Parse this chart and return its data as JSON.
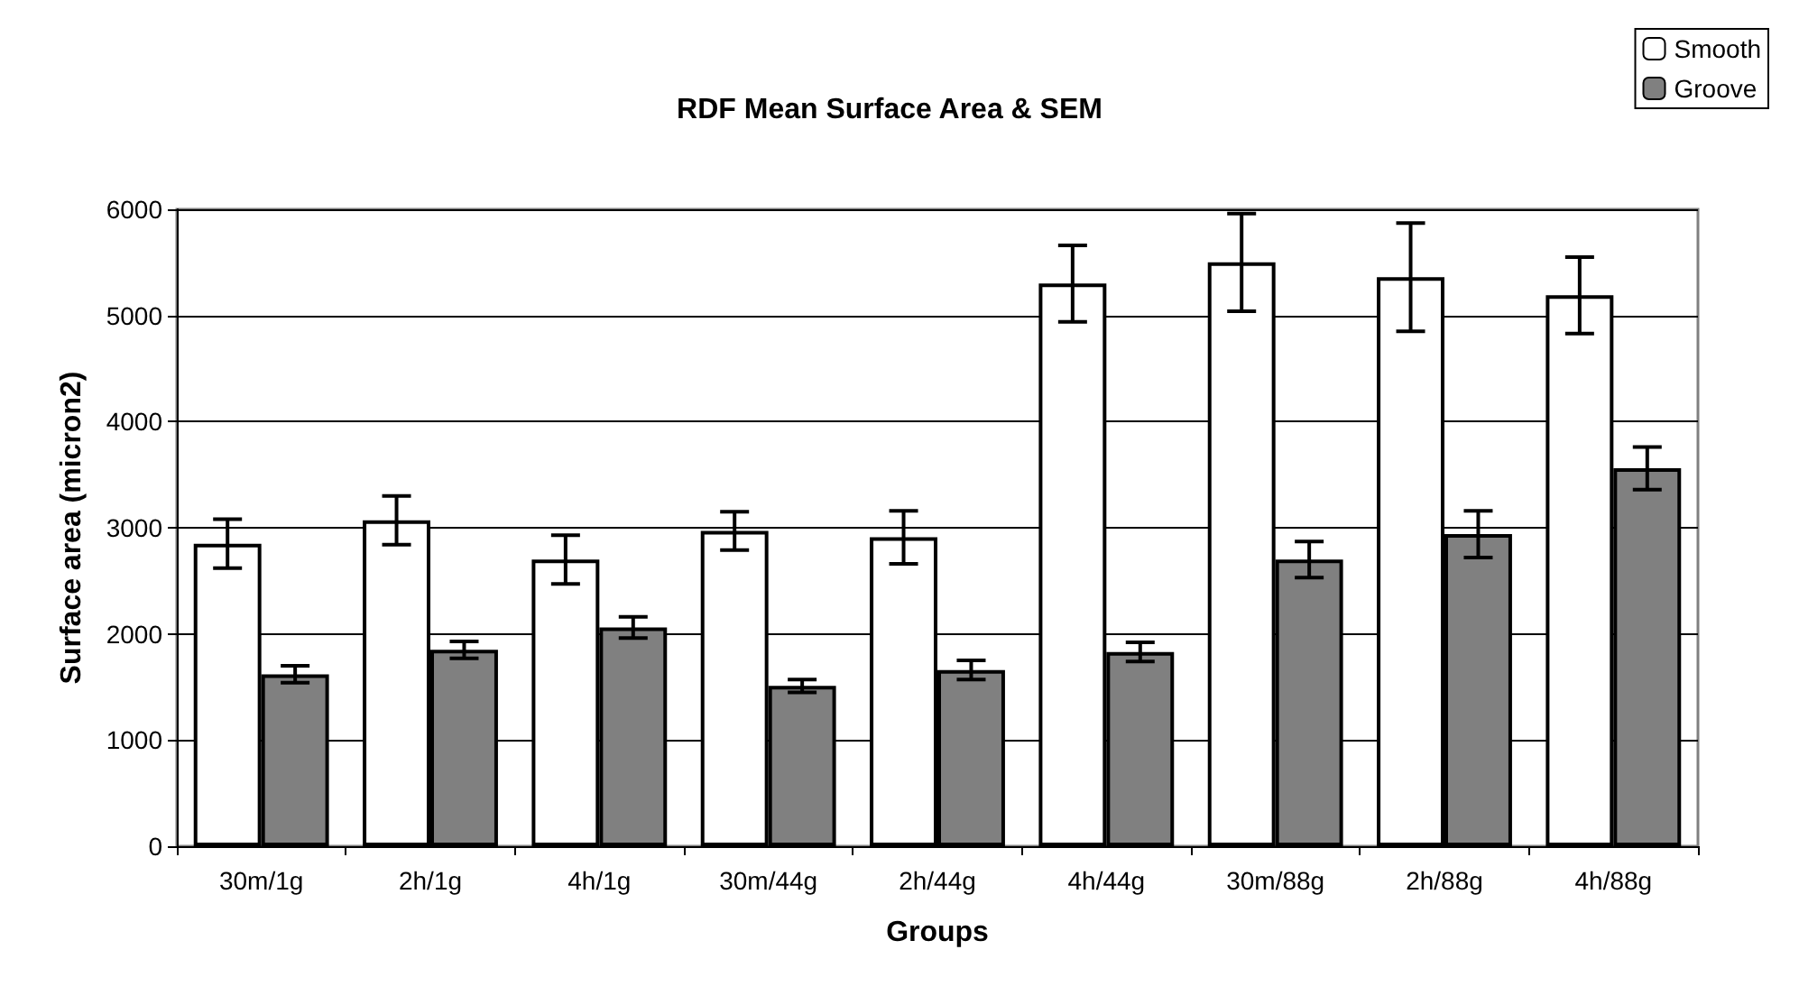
{
  "chart_data": {
    "type": "bar",
    "title": "RDF Mean Surface Area & SEM",
    "xlabel": "Groups",
    "ylabel": "Surface area (micron2)",
    "categories": [
      "30m/1g",
      "2h/1g",
      "4h/1g",
      "30m/44g",
      "2h/44g",
      "4h/44g",
      "30m/88g",
      "2h/88g",
      "4h/88g"
    ],
    "series": [
      {
        "name": "Smooth",
        "color": "#ffffff",
        "values": [
          2850,
          3070,
          2700,
          2970,
          2910,
          5300,
          5500,
          5360,
          5190
        ],
        "errors": [
          230,
          230,
          230,
          180,
          250,
          360,
          460,
          510,
          360
        ]
      },
      {
        "name": "Groove",
        "color": "#808080",
        "values": [
          1620,
          1850,
          2060,
          1510,
          1660,
          1830,
          2700,
          2940,
          3560
        ],
        "errors": [
          80,
          80,
          100,
          60,
          90,
          90,
          170,
          220,
          200
        ]
      }
    ],
    "ylim": [
      0,
      6000
    ],
    "yticks": [
      0,
      1000,
      2000,
      3000,
      4000,
      5000,
      6000
    ],
    "grid": "y",
    "legend": "top right"
  }
}
